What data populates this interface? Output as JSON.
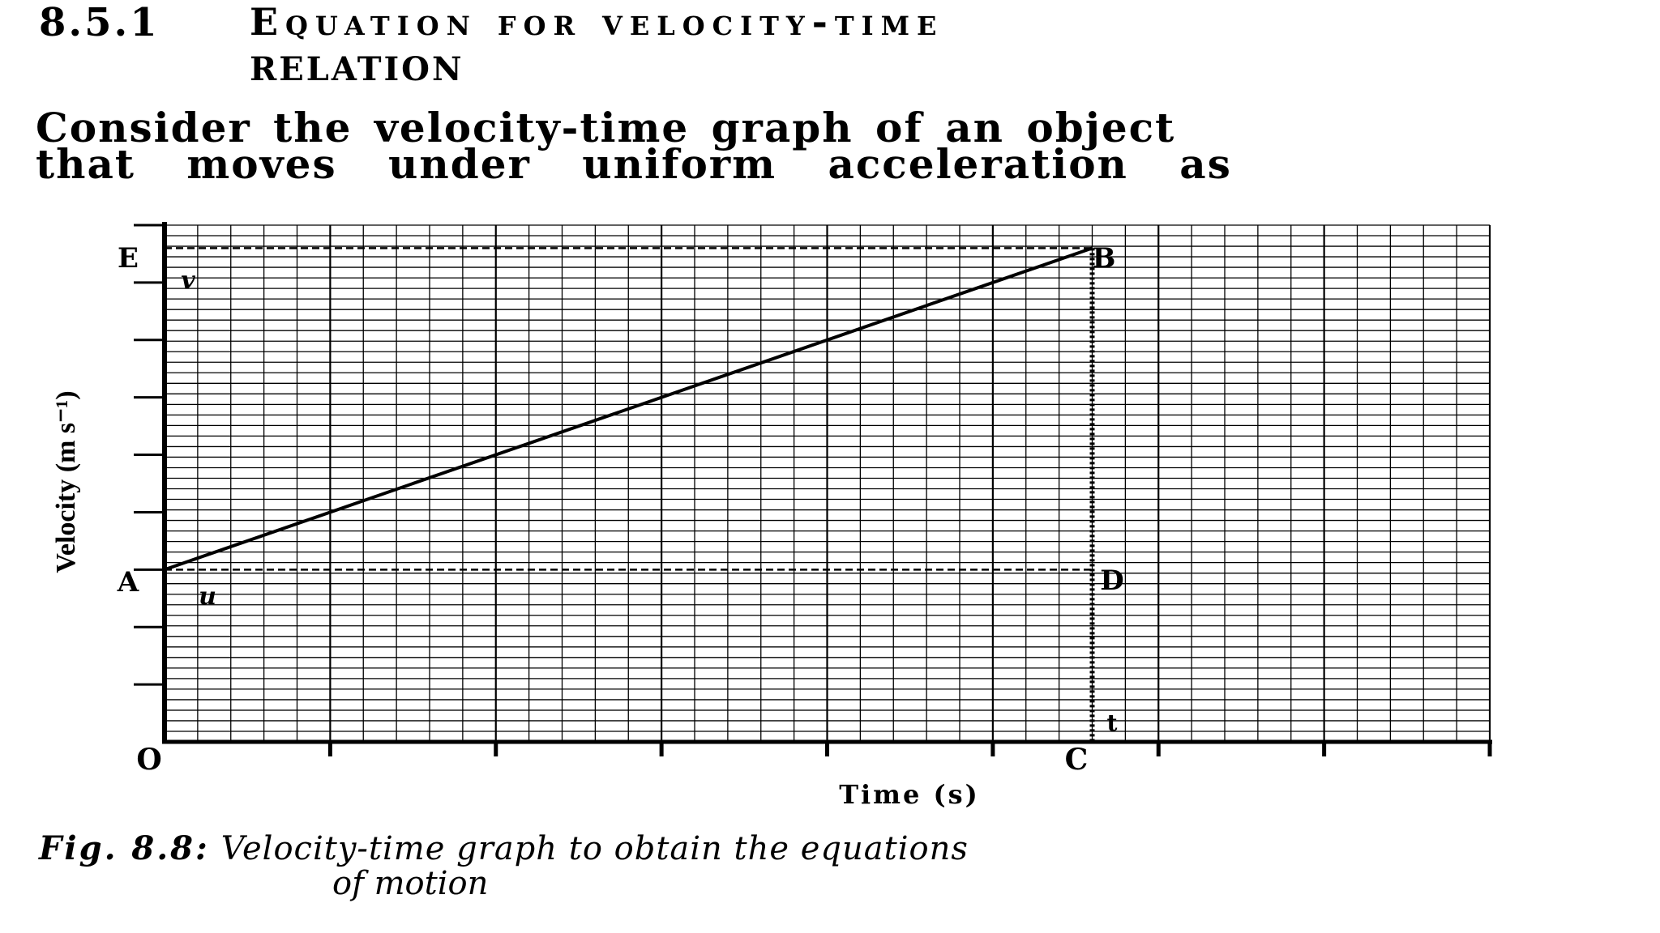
{
  "section": {
    "number": "8.5.1",
    "title_line1": "Equation for velocity-time",
    "title_line2": "RELATION"
  },
  "paragraph": {
    "line1": "Consider the velocity-time graph of an object",
    "line2": "that moves under uniform acceleration as"
  },
  "figure": {
    "y_axis_label": "Velocity (m s⁻¹)",
    "x_axis_label": "Time (s)",
    "points": {
      "origin": "O",
      "A": "A",
      "B": "B",
      "C": "C",
      "D": "D",
      "E": "E"
    },
    "symbols": {
      "u": "u",
      "v": "v",
      "t": "t"
    },
    "colors": {
      "ink": "#000000",
      "paper": "#ffffff"
    }
  },
  "chart_data": {
    "type": "line",
    "xlabel": "Time (s)",
    "ylabel": "Velocity (m s⁻¹)",
    "grid": true,
    "series": [
      {
        "x": [
          0,
          5.6
        ],
        "y": [
          3,
          8.6
        ]
      }
    ],
    "points": [
      {
        "label": "O",
        "x": 0,
        "y": 0
      },
      {
        "label": "A",
        "x": 0,
        "y": 3
      },
      {
        "label": "B",
        "x": 5.6,
        "y": 8.6
      },
      {
        "label": "C",
        "x": 5.6,
        "y": 0
      },
      {
        "label": "D",
        "x": 5.6,
        "y": 3
      },
      {
        "label": "E",
        "x": 0,
        "y": 8.6
      }
    ],
    "reference_lines": [
      {
        "from": "A",
        "to": "D",
        "style": "dashed"
      },
      {
        "from": "E",
        "to": "B",
        "style": "dashed"
      },
      {
        "from": "B",
        "to": "C",
        "style": "dotted"
      }
    ],
    "xlim": [
      0,
      8
    ],
    "ylim": [
      0,
      9
    ]
  },
  "caption": {
    "label": "Fig. 8.8:",
    "text": "Velocity-time graph to obtain the equations",
    "text_line2": "of motion"
  }
}
